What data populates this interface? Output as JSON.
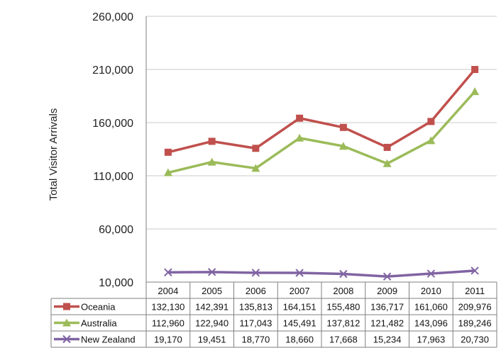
{
  "chart_data": {
    "type": "line",
    "title": "",
    "xlabel": "",
    "ylabel": "Total Visitor Arrivals",
    "categories": [
      "2004",
      "2005",
      "2006",
      "2007",
      "2008",
      "2009",
      "2010",
      "2011"
    ],
    "ylim": [
      10000,
      260000
    ],
    "yticks": [
      10000,
      60000,
      110000,
      160000,
      210000,
      260000
    ],
    "ytick_labels": [
      "10,000",
      "60,000",
      "110,000",
      "160,000",
      "210,000",
      "260,000"
    ],
    "grid": true,
    "legend": "data-table-bottom",
    "series": [
      {
        "name": "Oceania",
        "color": "#c0504d",
        "marker": "square",
        "values": [
          132130,
          142391,
          135813,
          164151,
          155480,
          136717,
          161060,
          209976
        ],
        "labels": [
          "132,130",
          "142,391",
          "135,813",
          "164,151",
          "155,480",
          "136,717",
          "161,060",
          "209,976"
        ]
      },
      {
        "name": "Australia",
        "color": "#9bbb59",
        "marker": "triangle",
        "values": [
          112960,
          122940,
          117043,
          145491,
          137812,
          121482,
          143096,
          189246
        ],
        "labels": [
          "112,960",
          "122,940",
          "117,043",
          "145,491",
          "137,812",
          "121,482",
          "143,096",
          "189,246"
        ]
      },
      {
        "name": "New Zealand",
        "color": "#8064a2",
        "marker": "x",
        "values": [
          19170,
          19451,
          18770,
          18660,
          17668,
          15234,
          17963,
          20730
        ],
        "labels": [
          "19,170",
          "19,451",
          "18,770",
          "18,660",
          "17,668",
          "15,234",
          "17,963",
          "20,730"
        ]
      }
    ]
  }
}
